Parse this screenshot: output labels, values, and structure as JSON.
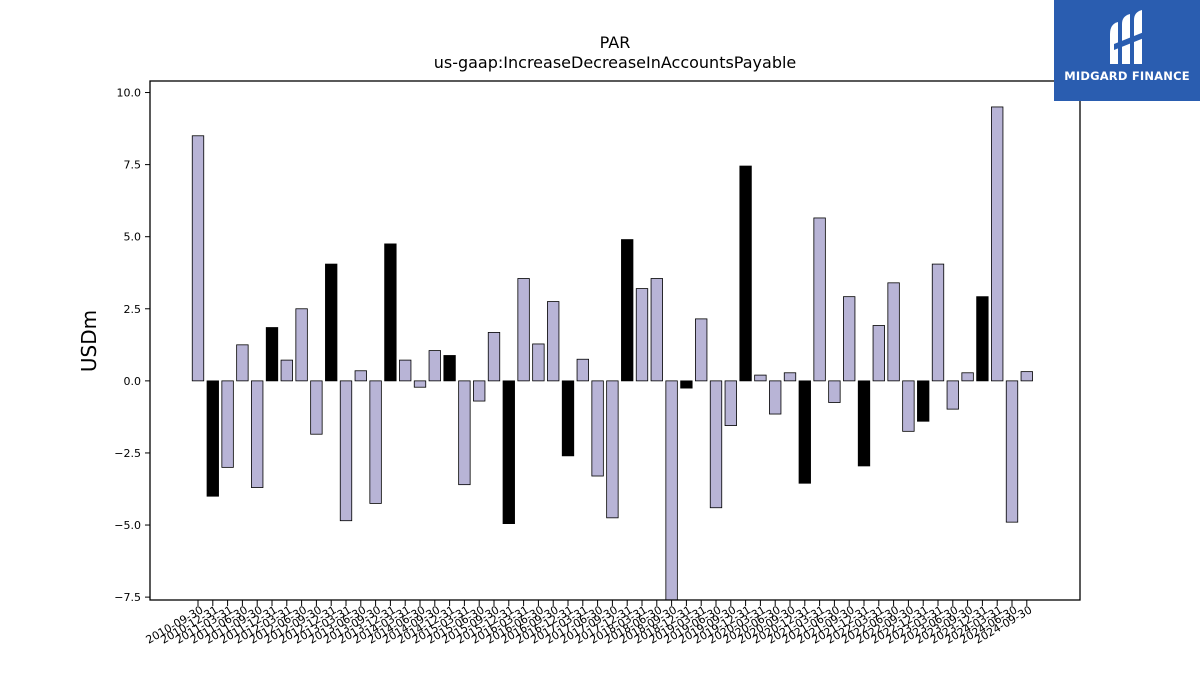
{
  "brand": {
    "name": "MIDGARD FINANCE",
    "color": "#2a5db0",
    "icon": "midgard-logo-icon"
  },
  "chart_data": {
    "type": "bar",
    "title": "PAR",
    "subtitle": "us-gaap:IncreaseDecreaseInAccountsPayable",
    "xlabel": "",
    "ylabel": "USDm",
    "ylim": [
      -7.6,
      10.4
    ],
    "yticks": [
      -7.5,
      -5.0,
      -2.5,
      0.0,
      2.5,
      5.0,
      7.5,
      10.0
    ],
    "ytick_labels": [
      "−7.5",
      "−5.0",
      "−2.5",
      "0.0",
      "2.5",
      "5.0",
      "7.5",
      "10.0"
    ],
    "grid": false,
    "colors": {
      "quarter": "#b8b4d6",
      "fiscal_year": "#000000"
    },
    "categories": [
      "2010-09-30",
      "2010-12-31",
      "2011-03-31",
      "2011-06-30",
      "2011-09-30",
      "2011-12-31",
      "2012-03-31",
      "2012-06-30",
      "2012-09-30",
      "2012-12-31",
      "2013-03-31",
      "2013-06-30",
      "2013-09-30",
      "2013-12-31",
      "2014-03-31",
      "2014-06-30",
      "2014-09-30",
      "2014-12-31",
      "2015-03-31",
      "2015-06-30",
      "2015-09-30",
      "2015-12-31",
      "2016-03-31",
      "2016-06-30",
      "2016-09-30",
      "2016-12-31",
      "2017-03-31",
      "2017-06-30",
      "2017-09-30",
      "2017-12-31",
      "2018-03-31",
      "2018-06-30",
      "2018-09-30",
      "2018-12-31",
      "2019-03-31",
      "2019-06-30",
      "2019-09-30",
      "2019-12-31",
      "2020-03-31",
      "2020-06-30",
      "2020-09-30",
      "2020-12-31",
      "2021-03-31",
      "2021-06-30",
      "2021-09-30",
      "2021-12-31",
      "2022-03-31",
      "2022-06-30",
      "2022-09-30",
      "2022-12-31",
      "2023-03-31",
      "2023-06-30",
      "2023-09-30",
      "2023-12-31",
      "2024-03-31",
      "2024-06-30",
      "2024-09-30"
    ],
    "values": [
      8.5,
      -4.0,
      -3.0,
      1.25,
      -3.7,
      1.85,
      0.72,
      2.5,
      -1.85,
      4.05,
      -4.85,
      0.35,
      -4.25,
      4.75,
      0.72,
      -0.22,
      1.05,
      0.88,
      -3.6,
      -0.7,
      1.68,
      -4.95,
      3.55,
      1.28,
      2.75,
      -2.6,
      0.75,
      -3.3,
      -4.75,
      4.9,
      3.2,
      3.55,
      -7.6,
      -0.25,
      2.15,
      -4.4,
      -1.55,
      7.45,
      0.2,
      -1.15,
      0.28,
      -3.55,
      5.65,
      -0.75,
      2.92,
      -2.95,
      1.92,
      3.4,
      -1.75,
      -1.4,
      4.05,
      -0.98,
      0.28,
      2.92,
      9.5,
      -4.9,
      0.32
    ],
    "fiscal_year_end": [
      false,
      true,
      false,
      false,
      false,
      true,
      false,
      false,
      false,
      true,
      false,
      false,
      false,
      true,
      false,
      false,
      false,
      true,
      false,
      false,
      false,
      true,
      false,
      false,
      false,
      true,
      false,
      false,
      false,
      true,
      false,
      false,
      false,
      true,
      false,
      false,
      false,
      true,
      false,
      false,
      false,
      true,
      false,
      false,
      false,
      true,
      false,
      false,
      false,
      true,
      false,
      false,
      false,
      true,
      false,
      false,
      false
    ]
  }
}
